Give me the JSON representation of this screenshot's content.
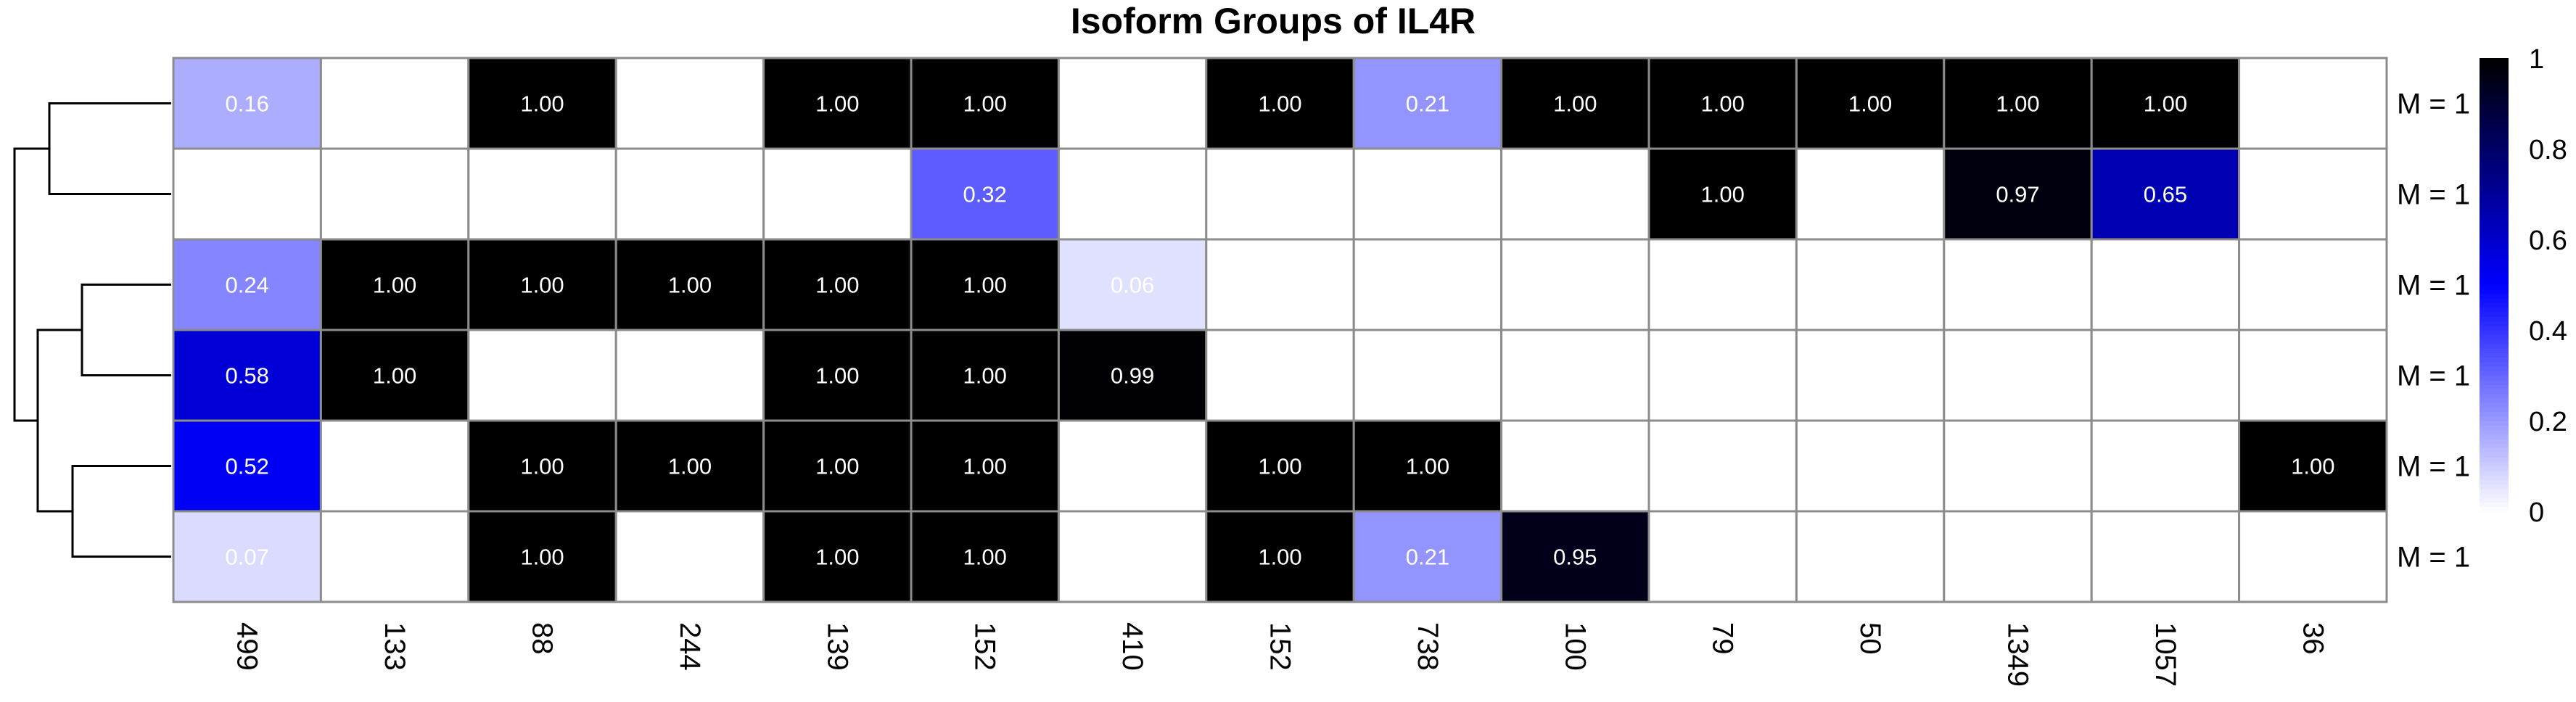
{
  "chart_data": {
    "type": "heatmap",
    "title": "Isoform Groups of IL4R",
    "columns": [
      "499",
      "133",
      "88",
      "244",
      "139",
      "152",
      "410",
      "152",
      "738",
      "100",
      "79",
      "50",
      "1349",
      "1057",
      "36"
    ],
    "row_labels": [
      "M = 1",
      "M = 1",
      "M = 1",
      "M = 1",
      "M = 1",
      "M = 1"
    ],
    "values": [
      [
        0.16,
        null,
        1.0,
        null,
        1.0,
        1.0,
        null,
        1.0,
        0.21,
        1.0,
        1.0,
        1.0,
        1.0,
        1.0,
        null
      ],
      [
        null,
        null,
        null,
        null,
        null,
        0.32,
        null,
        null,
        null,
        null,
        1.0,
        null,
        0.97,
        0.65,
        null
      ],
      [
        0.24,
        1.0,
        1.0,
        1.0,
        1.0,
        1.0,
        0.06,
        null,
        null,
        null,
        null,
        null,
        null,
        null,
        null
      ],
      [
        0.58,
        1.0,
        null,
        null,
        1.0,
        1.0,
        0.99,
        null,
        null,
        null,
        null,
        null,
        null,
        null,
        null
      ],
      [
        0.52,
        null,
        1.0,
        1.0,
        1.0,
        1.0,
        null,
        1.0,
        1.0,
        null,
        null,
        null,
        null,
        null,
        1.0
      ],
      [
        0.07,
        null,
        1.0,
        null,
        1.0,
        1.0,
        null,
        1.0,
        0.21,
        0.95,
        null,
        null,
        null,
        null,
        null
      ]
    ],
    "value_labels": [
      [
        "0.16",
        "",
        "1.00",
        "",
        "1.00",
        "1.00",
        "",
        "1.00",
        "0.21",
        "1.00",
        "1.00",
        "1.00",
        "1.00",
        "1.00",
        ""
      ],
      [
        "",
        "",
        "",
        "",
        "",
        "0.32",
        "",
        "",
        "",
        "",
        "1.00",
        "",
        "0.97",
        "0.65",
        ""
      ],
      [
        "0.24",
        "1.00",
        "1.00",
        "1.00",
        "1.00",
        "1.00",
        "0.06",
        "",
        "",
        "",
        "",
        "",
        "",
        "",
        ""
      ],
      [
        "0.58",
        "1.00",
        "",
        "",
        "1.00",
        "1.00",
        "0.99",
        "",
        "",
        "",
        "",
        "",
        "",
        "",
        ""
      ],
      [
        "0.52",
        "",
        "1.00",
        "1.00",
        "1.00",
        "1.00",
        "",
        "1.00",
        "1.00",
        "",
        "",
        "",
        "",
        "",
        "1.00"
      ],
      [
        "0.07",
        "",
        "1.00",
        "",
        "1.00",
        "1.00",
        "",
        "1.00",
        "0.21",
        "0.95",
        "",
        "",
        "",
        "",
        ""
      ]
    ],
    "legend": {
      "ticks": [
        0,
        0.2,
        0.4,
        0.6,
        0.8,
        1
      ],
      "tick_labels": [
        "0",
        "0.2",
        "0.4",
        "0.6",
        "0.8",
        "1"
      ],
      "placement": "right"
    },
    "colorscale": [
      "#ffffff",
      "#0000ff",
      "#000000"
    ],
    "grid_color": "#8c8c8c",
    "dendrogram": {
      "side": "left",
      "merges": [
        [
          0,
          1
        ],
        [
          2,
          3
        ],
        [
          4,
          5
        ],
        [
          2,
          4
        ],
        [
          0,
          2
        ]
      ]
    }
  }
}
